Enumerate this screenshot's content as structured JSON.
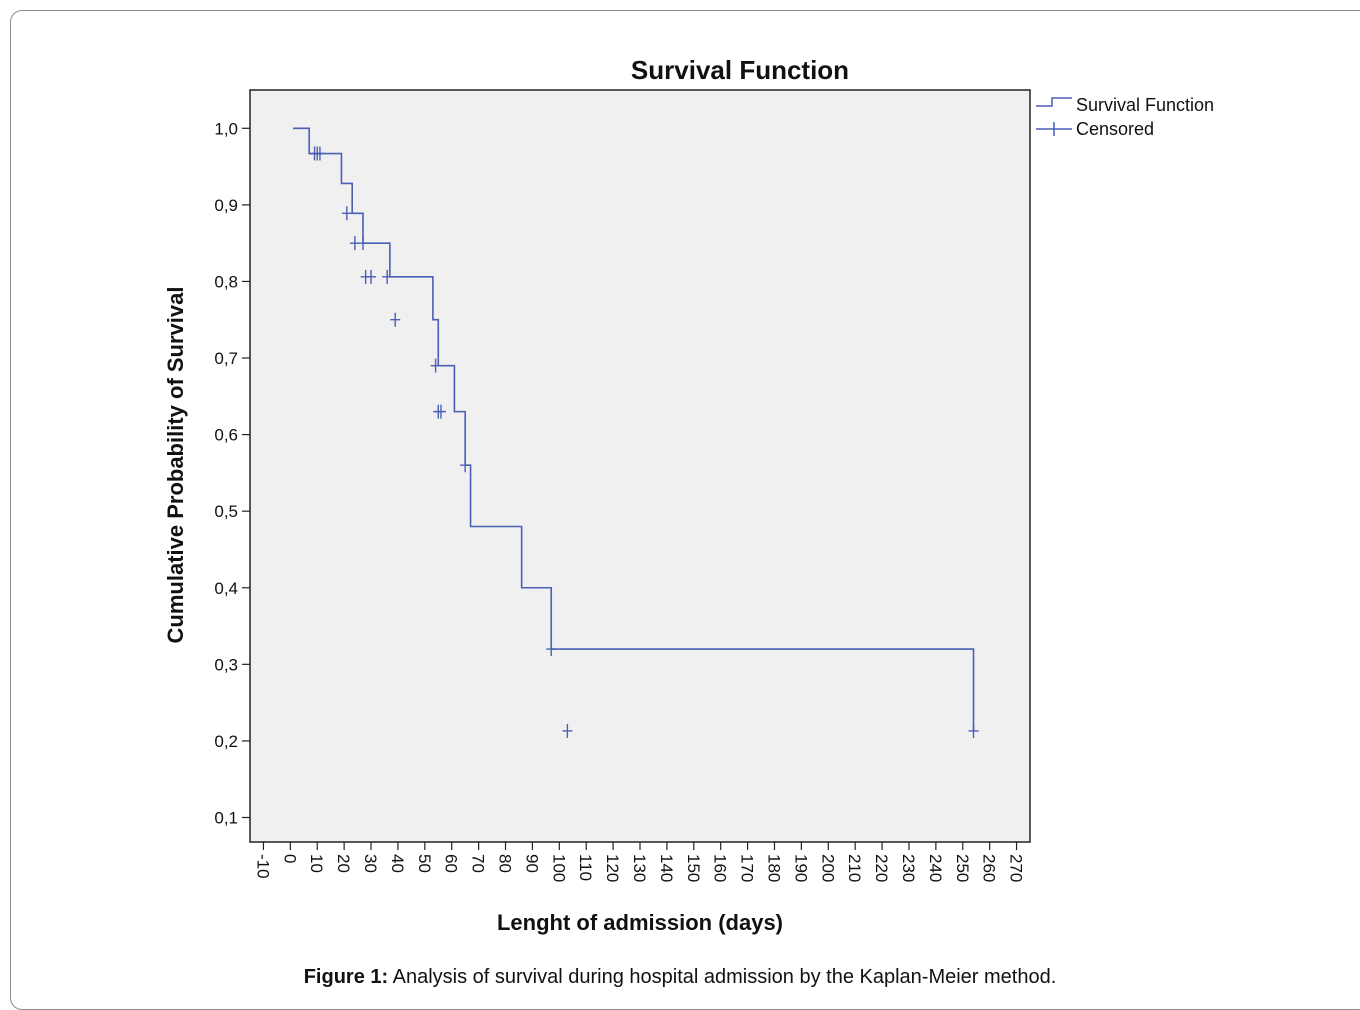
{
  "chart_data": {
    "type": "line",
    "title": "Survival Function",
    "xlabel": "Lenght of admission (days)",
    "ylabel": "Cumulative Probability of Survival",
    "xlim": [
      -15,
      275
    ],
    "ylim": [
      0.068,
      1.05
    ],
    "x_ticks": [
      -10,
      0,
      10,
      20,
      30,
      40,
      50,
      60,
      70,
      80,
      90,
      100,
      110,
      120,
      130,
      140,
      150,
      160,
      170,
      180,
      190,
      200,
      210,
      220,
      230,
      240,
      250,
      260,
      270
    ],
    "x_tick_labels": [
      "-10",
      "0",
      "10",
      "20",
      "30",
      "40",
      "50",
      "60",
      "70",
      "80",
      "90",
      "100",
      "110",
      "120",
      "130",
      "140",
      "150",
      "160",
      "170",
      "180",
      "190",
      "200",
      "210",
      "220",
      "230",
      "240",
      "250",
      "260",
      "270"
    ],
    "y_ticks": [
      0.1,
      0.2,
      0.3,
      0.4,
      0.5,
      0.6,
      0.7,
      0.8,
      0.9,
      1.0
    ],
    "y_tick_labels": [
      "0,1",
      "0,2",
      "0,3",
      "0,4",
      "0,5",
      "0,6",
      "0,7",
      "0,8",
      "0,9",
      "1,0"
    ],
    "grid": false,
    "legend_position": "top-right-outside",
    "series": [
      {
        "name": "Survival Function",
        "style": "step",
        "color": "#4a5fb5",
        "x": [
          1,
          7,
          13,
          19,
          23,
          27,
          37,
          53,
          55,
          61,
          65,
          67,
          86,
          97,
          254
        ],
        "y": [
          1.0,
          0.967,
          0.967,
          0.928,
          0.889,
          0.85,
          0.806,
          0.75,
          0.69,
          0.63,
          0.56,
          0.48,
          0.4,
          0.32,
          0.213
        ]
      },
      {
        "name": "Censored",
        "style": "marker-plus",
        "color": "#4a5fb5",
        "x": [
          9,
          10,
          11,
          21,
          24,
          27,
          28,
          30,
          36,
          39,
          54,
          55,
          56,
          65,
          97,
          103,
          254
        ],
        "y": [
          0.967,
          0.967,
          0.967,
          0.889,
          0.85,
          0.85,
          0.806,
          0.806,
          0.806,
          0.75,
          0.69,
          0.63,
          0.63,
          0.56,
          0.32,
          0.213,
          0.213
        ]
      }
    ]
  },
  "caption": {
    "label": "Figure 1:",
    "text": " Analysis of survival during hospital admission by the Kaplan-Meier method."
  }
}
